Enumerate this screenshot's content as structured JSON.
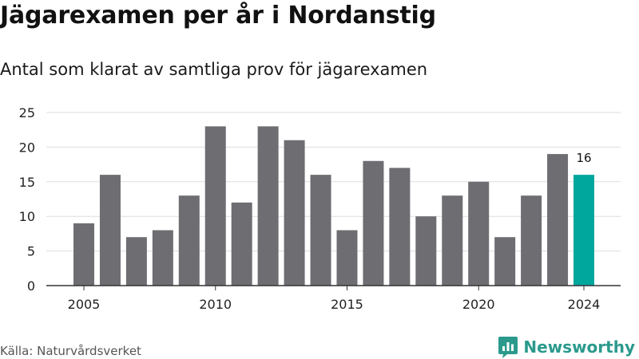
{
  "title": "Jägarexamen per år i Nordanstig",
  "subtitle": "Antal som klarat av samtliga prov för jägarexamen",
  "source": "Källa: Naturvårdsverket",
  "brand": {
    "name": "Newsworthy",
    "icon": "newsworthy-logo-icon"
  },
  "colors": {
    "bar": "#6e6d72",
    "highlight": "#00a79d",
    "grid": "#dddddd",
    "brand": "#2b9a8d"
  },
  "chart_data": {
    "type": "bar",
    "x": [
      2005,
      2006,
      2007,
      2008,
      2009,
      2010,
      2011,
      2012,
      2013,
      2014,
      2015,
      2016,
      2017,
      2018,
      2019,
      2020,
      2021,
      2022,
      2023,
      2024
    ],
    "values": [
      9,
      16,
      7,
      8,
      13,
      23,
      12,
      23,
      21,
      16,
      8,
      18,
      17,
      10,
      13,
      15,
      7,
      13,
      19,
      16
    ],
    "xticks": [
      "2005",
      "2010",
      "2015",
      "2020",
      "2024"
    ],
    "yticks": [
      "0",
      "5",
      "10",
      "15",
      "20",
      "25"
    ],
    "ylim": [
      0,
      25
    ],
    "highlight": {
      "year": 2024,
      "label": "16"
    },
    "grid": true,
    "xlabel": "",
    "ylabel": ""
  }
}
